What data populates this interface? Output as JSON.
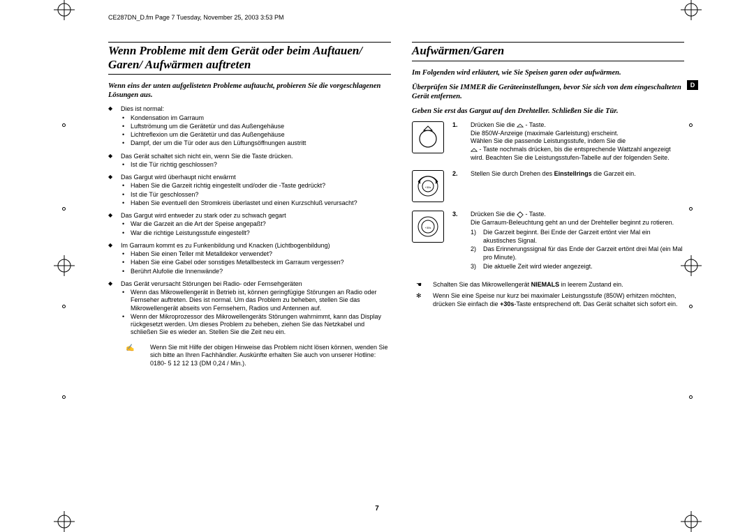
{
  "header": "CE287DN_D.fm  Page 7  Tuesday, November 25, 2003  3:53 PM",
  "side_tab": "D",
  "page_number": "7",
  "left": {
    "title": "Wenn Probleme mit dem Gerät oder beim Auftauen/ Garen/ Aufwärmen auftreten",
    "intro": "Wenn eins der unten aufgelisteten Probleme auftaucht, probieren Sie die vorgeschlagenen Lösungen aus.",
    "bullets": [
      {
        "head": "Dies ist normal:",
        "subs": [
          "Kondensation im Garraum",
          "Luftströmung um die Gerätetür und das Außengehäuse",
          "Lichtreflexion um die Gerätetür und das Außengehäuse",
          "Dampf, der um die Tür oder aus den Lüftungsöffnungen austritt"
        ]
      },
      {
        "head": "Das Gerät schaltet sich nicht ein, wenn Sie die Taste drücken.",
        "subs": [
          "Ist die Tür richtig geschlossen?"
        ]
      },
      {
        "head": "Das Gargut wird überhaupt nicht erwärmt",
        "subs": [
          "Haben Sie die Garzeit richtig eingestellt und/oder die      -Taste gedrückt?",
          "Ist die Tür geschlossen?",
          "Haben Sie eventuell den Stromkreis überlastet und einen Kurzschluß verursacht?"
        ]
      },
      {
        "head": "Das Gargut wird entweder zu stark oder zu schwach gegart",
        "subs": [
          "War die Garzeit an die Art der Speise angepaßt?",
          "War die richtige Leistungsstufe eingestellt?"
        ]
      },
      {
        "head": "Im Garraum kommt es zu Funkenbildung und Knacken (Lichtbogenbildung)",
        "subs": [
          "Haben Sie einen Teller mit Metalldekor verwendet?",
          "Haben Sie eine Gabel oder sonstiges Metallbesteck im Garraum vergessen?",
          "Berührt Alufolie die Innenwände?"
        ]
      },
      {
        "head": "Das Gerät verursacht Störungen bei Radio- oder Fernsehgeräten",
        "subs": [
          "Wenn das Mikrowellengerät in Betrieb ist, können geringfügige Störungen an Radio oder Fernseher auftreten. Dies ist normal. Um das Problem zu beheben, stellen Sie das Mikrowellengerät abseits von Fernsehern, Radios und Antennen auf.",
          "Wenn der Mikroprozessor des Mikrowellengeräts Störungen wahrnimmt, kann das Display rückgesetzt werden. Um dieses Problem zu beheben, ziehen Sie das Netzkabel und schließen Sie es wieder an. Stellen Sie die Zeit neu ein."
        ]
      }
    ],
    "note": "Wenn Sie mit Hilfe der obigen Hinweise das Problem nicht lösen können, wenden Sie sich bitte an Ihren Fachhändler. Auskünfte erhalten Sie auch von unserer Hotline: 0180- 5 12 12 13 (DM 0,24 / Min.)."
  },
  "right": {
    "title": "Aufwärmen/Garen",
    "intros": [
      "Im Folgenden wird erläutert, wie Sie Speisen garen oder aufwärmen.",
      "Überprüfen Sie IMMER die Geräteeinstellungen, bevor Sie sich von dem eingeschalteten Gerät entfernen.",
      "Geben Sie erst das Gargut auf den Drehteller. Schließen Sie die Tür."
    ],
    "steps": [
      {
        "num": "1.",
        "text_pre": "Drücken Sie die ",
        "text_post": " - Taste.",
        "lines": [
          "Die 850W-Anzeige (maximale Garleistung) erscheint.",
          "Wählen Sie die passende Leistungsstufe, indem Sie die",
          "      - Taste nochmals drücken, bis die entsprechende Wattzahl angezeigt wird. Beachten Sie die Leistungsstufen-Tabelle auf der folgenden Seite."
        ]
      },
      {
        "num": "2.",
        "text": "Stellen Sie durch Drehen des Einstellrings die Garzeit ein.",
        "bold_word": "Einstellrings"
      },
      {
        "num": "3.",
        "text_pre": "Drücken Sie die ",
        "text_post": " - Taste.",
        "lines": [
          "Die Garraum-Beleuchtung geht an und der Drehteller beginnt zu rotieren."
        ],
        "ol": [
          "Die Garzeit beginnt. Bei Ende der Garzeit ertönt vier Mal ein akustisches Signal.",
          "Das Erinnerungssignal für das Ende der Garzeit ertönt drei Mal (ein Mal pro Minute).",
          "Die aktuelle Zeit wird wieder angezeigt."
        ]
      }
    ],
    "hints": [
      {
        "icon": "hand",
        "text_pre": "Schalten Sie das Mikrowellengerät ",
        "bold": "NIEMALS",
        "text_post": " in leerem Zustand ein."
      },
      {
        "icon": "idea",
        "text_pre": "Wenn Sie eine Speise nur kurz bei maximaler Leistungsstufe (850W) erhitzen möchten, drücken Sie einfach die ",
        "bold": "+30s",
        "text_post": "-Taste entsprechend oft. Das Gerät schaltet sich sofort ein."
      }
    ]
  }
}
